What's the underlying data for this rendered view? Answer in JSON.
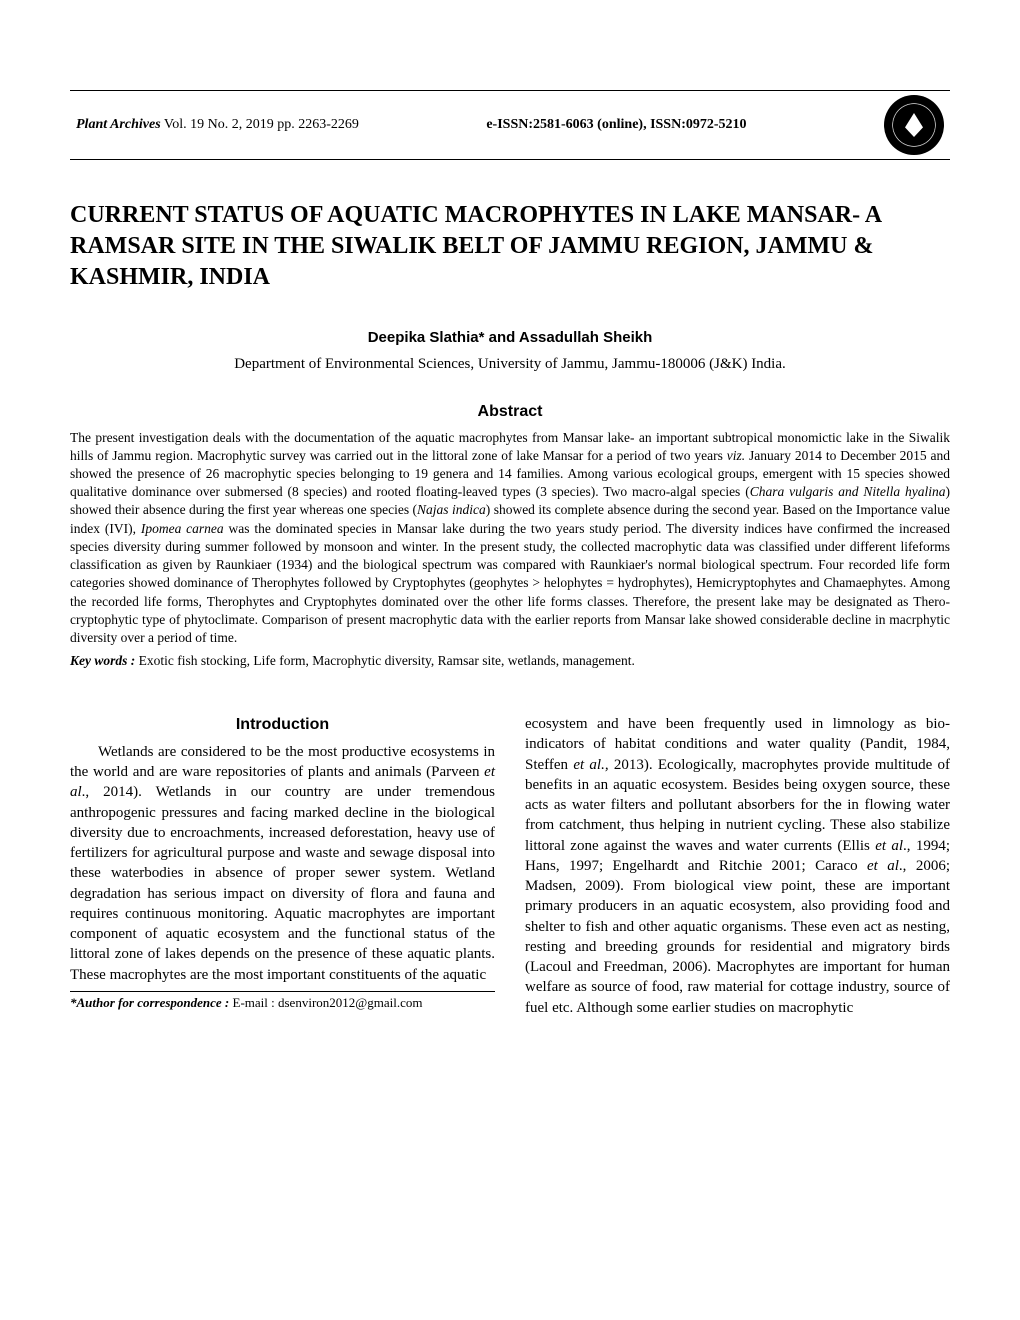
{
  "header": {
    "journal_name": "Plant Archives",
    "vol_info": " Vol. 19 No. 2, 2019 pp. 2263-2269",
    "issn": "e-ISSN:2581-6063 (online), ISSN:0972-5210"
  },
  "title": "CURRENT STATUS OF AQUATIC MACROPHYTES IN LAKE MANSAR- A RAMSAR SITE IN THE SIWALIK BELT OF JAMMU REGION, JAMMU & KASHMIR, INDIA",
  "authors": "Deepika Slathia* and Assadullah Sheikh",
  "affiliation": "Department of Environmental Sciences, University of Jammu, Jammu-180006 (J&K) India.",
  "abstract": {
    "heading": "Abstract",
    "body_1": "The present investigation deals with the documentation of the aquatic macrophytes from Mansar lake- an important subtropical monomictic lake in the Siwalik hills of Jammu region. Macrophytic survey was carried out in the littoral zone of lake Mansar for a period of two years ",
    "viz": "viz.",
    "body_2": " January 2014 to December 2015 and showed the presence of 26 macrophytic species belonging to 19 genera and 14 families. Among various ecological groups, emergent with 15 species showed qualitative dominance over submersed (8 species) and rooted floating-leaved types (3 species). Two macro-algal species (",
    "species1": "Chara vulgaris and Nitella hyalina",
    "body_3": ") showed their absence during the first year whereas one species (",
    "species2": "Najas indica",
    "body_4": ") showed its complete absence during the second year. Based on the Importance value index (IVI), ",
    "species3": "Ipomea carnea",
    "body_5": " was the dominated species in Mansar lake during the two years study period. The diversity indices have confirmed the increased species diversity during summer followed by monsoon and winter. In the present study, the collected macrophytic data was classified under different lifeforms classification as given by Raunkiaer (1934) and the biological spectrum was compared with Raunkiaer's normal biological spectrum. Four recorded life form categories showed dominance of Therophytes followed by Cryptophytes (geophytes > helophytes = hydrophytes), Hemicryptophytes and Chamaephytes. Among the recorded life forms, Therophytes and Cryptophytes dominated over the other life forms classes. Therefore, the present lake may be designated as Thero-cryptophytic type of phytoclimate. Comparison of present macrophytic data with the earlier reports from Mansar lake showed considerable decline in macrphytic diversity over a period of time.",
    "keywords_label": "Key words : ",
    "keywords": "Exotic fish stocking, Life form, Macrophytic diversity, Ramsar site, wetlands, management."
  },
  "intro": {
    "heading": "Introduction",
    "col1_p1a": "Wetlands are considered to be the most productive ecosystems in the world and are ware repositories of plants and animals (Parveen ",
    "etal1": "et al",
    "col1_p1b": "., 2014). Wetlands in our country are under tremendous anthropogenic pressures and facing marked decline in the biological diversity due to encroachments, increased deforestation, heavy use of fertilizers for agricultural purpose and waste and sewage disposal into these waterbodies in absence of proper sewer system. Wetland degradation has serious impact on diversity of flora and fauna and requires continuous monitoring. Aquatic macrophytes are important component of aquatic ecosystem and the functional status of the littoral zone of lakes depends on the presence of these aquatic plants. These macrophytes are the most important constituents of the aquatic ",
    "col2_a": "ecosystem and have been frequently used in limnology as bio-indicators of habitat conditions and water quality (Pandit, 1984, Steffen ",
    "etal2": "et al.,",
    "col2_b": " 2013). Ecologically, macrophytes provide multitude of benefits in an aquatic ecosystem. Besides being oxygen source, these acts as water filters and pollutant absorbers for the in flowing water from catchment, thus helping in nutrient cycling. These also stabilize littoral zone against the waves and water currents (Ellis ",
    "etal3": "et al",
    "col2_c": "., 1994; Hans, 1997; Engelhardt and Ritchie 2001; Caraco ",
    "etal4": "et al",
    "col2_d": "., 2006; Madsen, 2009). From biological view point, these are important primary producers in an aquatic ecosystem, also providing food and shelter to fish and other aquatic organisms. These even act as nesting, resting and breeding grounds for residential and migratory birds (Lacoul and Freedman, 2006). Macrophytes are important for human welfare as source of food, raw material for cottage industry, source of fuel etc. Although some earlier studies on macrophytic"
  },
  "footnote": {
    "label": "*Author for correspondence :",
    "text": " E-mail : dsenviron2012@gmail.com"
  }
}
